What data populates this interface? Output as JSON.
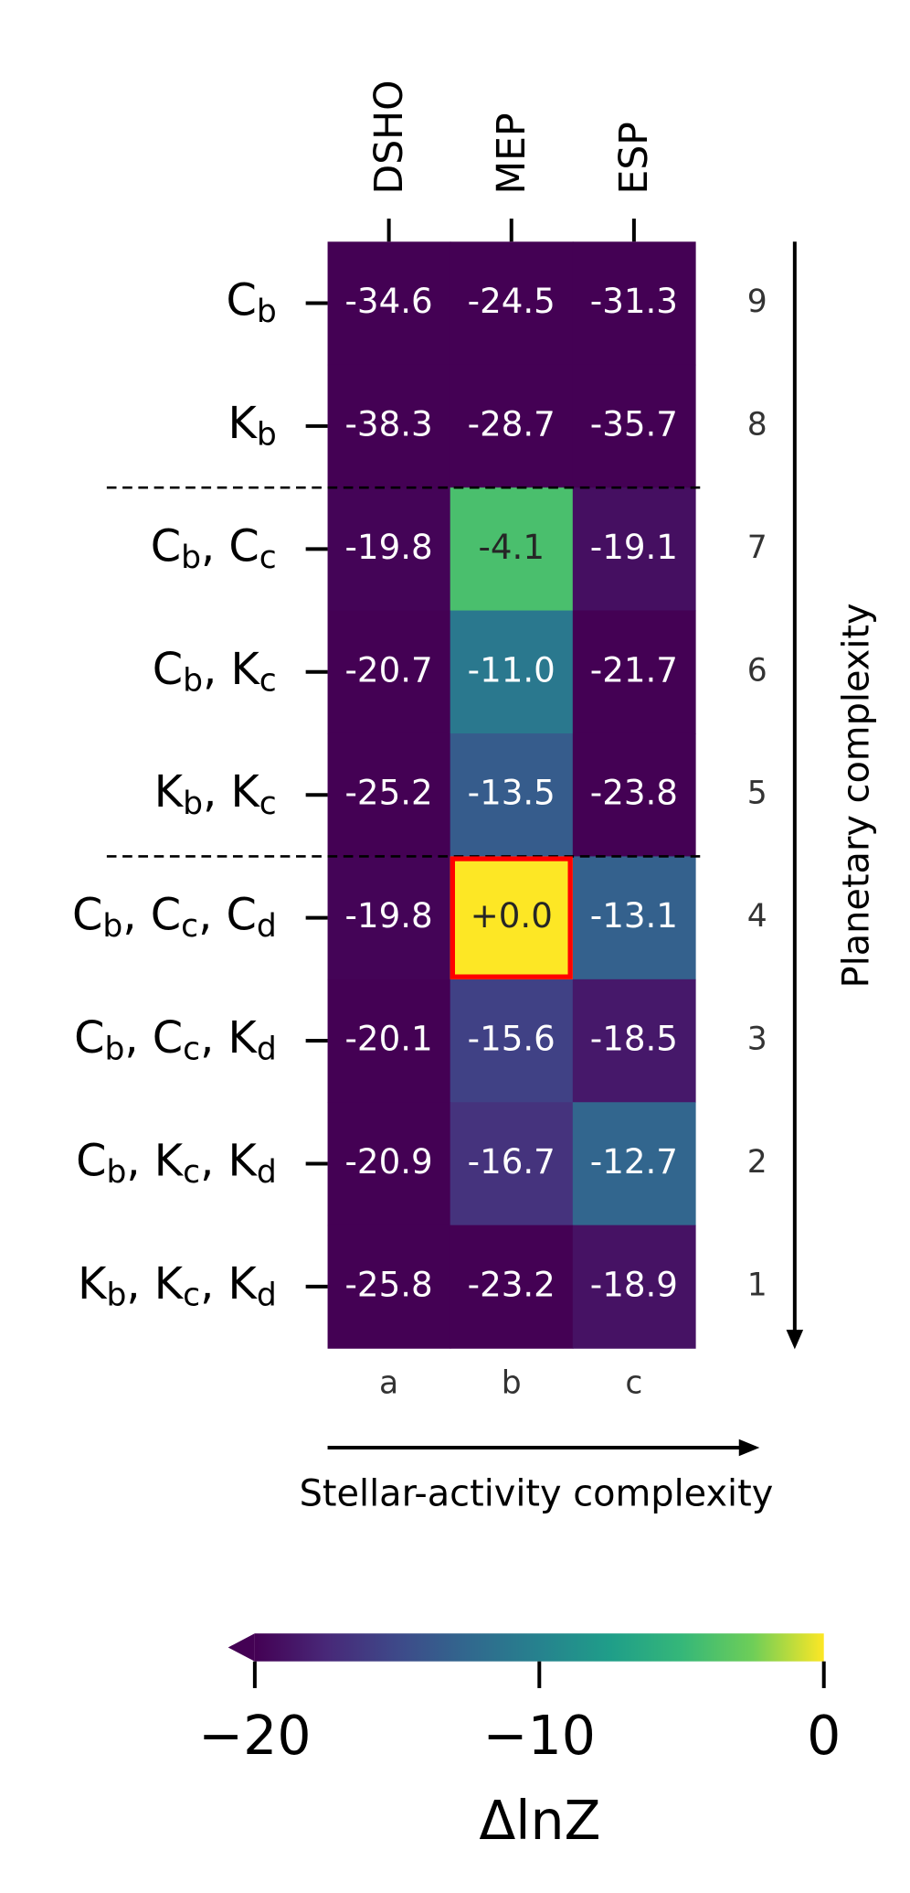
{
  "chart_data": {
    "type": "heatmap",
    "columns": [
      "DSHO",
      "MEP",
      "ESP"
    ],
    "column_letters": [
      "a",
      "b",
      "c"
    ],
    "rows": [
      [
        {
          "text": "C",
          "sub": "b"
        }
      ],
      [
        {
          "text": "K",
          "sub": "b"
        }
      ],
      [
        {
          "text": "C",
          "sub": "b"
        },
        {
          "text": ", C",
          "sub": "c"
        }
      ],
      [
        {
          "text": "C",
          "sub": "b"
        },
        {
          "text": ", K",
          "sub": "c"
        }
      ],
      [
        {
          "text": "K",
          "sub": "b"
        },
        {
          "text": ", K",
          "sub": "c"
        }
      ],
      [
        {
          "text": "C",
          "sub": "b"
        },
        {
          "text": ", C",
          "sub": "c"
        },
        {
          "text": ", C",
          "sub": "d"
        }
      ],
      [
        {
          "text": "C",
          "sub": "b"
        },
        {
          "text": ", C",
          "sub": "c"
        },
        {
          "text": ", K",
          "sub": "d"
        }
      ],
      [
        {
          "text": "C",
          "sub": "b"
        },
        {
          "text": ", K",
          "sub": "c"
        },
        {
          "text": ", K",
          "sub": "d"
        }
      ],
      [
        {
          "text": "K",
          "sub": "b"
        },
        {
          "text": ", K",
          "sub": "c"
        },
        {
          "text": ", K",
          "sub": "d"
        }
      ]
    ],
    "row_numbers": [
      9,
      8,
      7,
      6,
      5,
      4,
      3,
      2,
      1
    ],
    "values": [
      [
        -34.6,
        -24.5,
        -31.3
      ],
      [
        -38.3,
        -28.7,
        -35.7
      ],
      [
        -19.8,
        -4.1,
        -19.1
      ],
      [
        -20.7,
        -11.0,
        -21.7
      ],
      [
        -25.2,
        -13.5,
        -23.8
      ],
      [
        -19.8,
        0.0,
        -13.1
      ],
      [
        -20.1,
        -15.6,
        -18.5
      ],
      [
        -20.9,
        -16.7,
        -12.7
      ],
      [
        -25.8,
        -23.2,
        -18.9
      ]
    ],
    "value_labels": [
      [
        "-34.6",
        "-24.5",
        "-31.3"
      ],
      [
        "-38.3",
        "-28.7",
        "-35.7"
      ],
      [
        "-19.8",
        "-4.1",
        "-19.1"
      ],
      [
        "-20.7",
        "-11.0",
        "-21.7"
      ],
      [
        "-25.2",
        "-13.5",
        "-23.8"
      ],
      [
        "-19.8",
        "+0.0",
        "-13.1"
      ],
      [
        "-20.1",
        "-15.6",
        "-18.5"
      ],
      [
        "-20.9",
        "-16.7",
        "-12.7"
      ],
      [
        "-25.8",
        "-23.2",
        "-18.9"
      ]
    ],
    "colormap": "viridis",
    "highlight": {
      "row": 5,
      "column": 1,
      "color": "#ff0000"
    },
    "separators_after_rows": [
      1,
      4
    ],
    "y_axis_label": "Planetary complexity",
    "x_axis_label": "Stellar-activity complexity",
    "colorbar": {
      "label": "ΔlnZ",
      "lim": [
        -20,
        0
      ],
      "extend": "min",
      "ticks": [
        {
          "value": -20,
          "label": "−20"
        },
        {
          "value": -10,
          "label": "−10"
        },
        0
      ]
    }
  }
}
